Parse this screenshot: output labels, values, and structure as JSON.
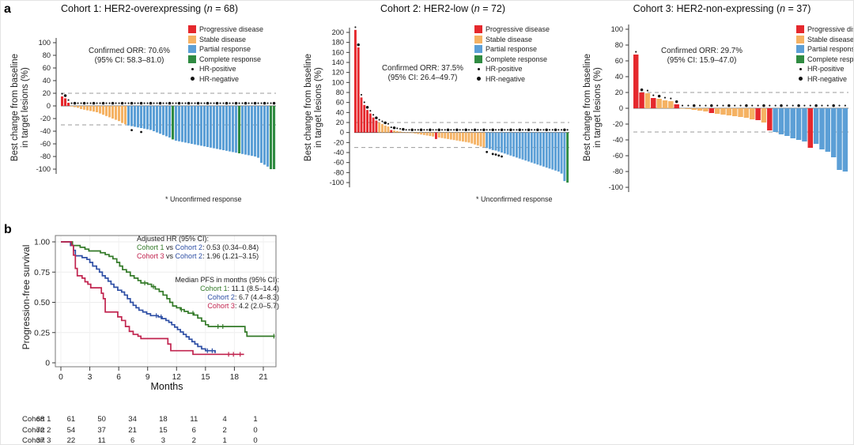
{
  "panels": {
    "a": "a",
    "b": "b"
  },
  "colors": {
    "progressive_disease": "#e5282d",
    "stable_disease": "#f5b263",
    "partial_response": "#5c9fd6",
    "complete_response": "#2f8b41",
    "km_cohort1": "#337a28",
    "km_cohort2": "#2e4fa5",
    "km_cohort3": "#c1244f",
    "axis": "#3a3a3a",
    "dash": "#9b9b9b",
    "marker": "#111111"
  },
  "legend": {
    "items": [
      {
        "label": "Progressive disease",
        "color_key": "progressive_disease"
      },
      {
        "label": "Stable disease",
        "color_key": "stable_disease"
      },
      {
        "label": "Partial response",
        "color_key": "partial_response"
      },
      {
        "label": "Complete response",
        "color_key": "complete_response"
      }
    ],
    "hr_items": [
      {
        "label": "HR-positive",
        "size": "small"
      },
      {
        "label": "HR-negative",
        "size": "large"
      }
    ]
  },
  "chart_data": [
    {
      "type": "bar",
      "subtype": "waterfall",
      "title_pre": "Cohort 1: HER2-overexpressing (",
      "title_n": "n",
      "title_post": " = 68)",
      "n": 68,
      "ylabel_line1": "Best change from baseline",
      "ylabel_line2": "in target lesions (%)",
      "ylim": [
        -100,
        100
      ],
      "ytick_step": 20,
      "ref_lines": [
        20,
        -30
      ],
      "orr_line1": "Confirmed ORR: 70.6%",
      "orr_line2": "(95% CI: 58.3–81.0)",
      "footnote": "* Unconfirmed response",
      "values": [
        15,
        12,
        5,
        -1,
        -2,
        -3,
        -5,
        -6,
        -7,
        -8,
        -9,
        -10,
        -12,
        -14,
        -16,
        -18,
        -20,
        -22,
        -24,
        -27,
        -29,
        -31,
        -32,
        -33,
        -34,
        -35,
        -36,
        -37,
        -38,
        -40,
        -42,
        -44,
        -46,
        -48,
        -50,
        -53,
        -55,
        -56,
        -57,
        -58,
        -59,
        -60,
        -61,
        -62,
        -63,
        -64,
        -65,
        -66,
        -67,
        -68,
        -69,
        -70,
        -71,
        -72,
        -73,
        -74,
        -75,
        -76,
        -77,
        -78,
        -79,
        -80,
        -82,
        -90,
        -93,
        -96,
        -100,
        -100
      ],
      "cats": [
        "PD",
        "PD",
        "PD",
        "SD",
        "SD",
        "SD",
        "SD",
        "SD",
        "SD",
        "SD",
        "SD",
        "SD",
        "SD",
        "SD",
        "SD",
        "SD",
        "SD",
        "SD",
        "SD",
        "SD",
        "SD",
        "PR",
        "PR",
        "PR",
        "PR",
        "PR",
        "PR",
        "PR",
        "PR",
        "PR",
        "PR",
        "PR",
        "PR",
        "PR",
        "PR",
        "CR",
        "PR",
        "PR",
        "PR",
        "PR",
        "PR",
        "PR",
        "PR",
        "PR",
        "PR",
        "PR",
        "PR",
        "PR",
        "PR",
        "PR",
        "PR",
        "PR",
        "PR",
        "PR",
        "PR",
        "PR",
        "CR",
        "PR",
        "PR",
        "PR",
        "PR",
        "PR",
        "PR",
        "PR",
        "PR",
        "PR",
        "CR",
        "CR"
      ],
      "unconfirmed_bar_indexes": [
        22,
        25
      ]
    },
    {
      "type": "bar",
      "subtype": "waterfall",
      "title_pre": "Cohort 2: HER2-low (",
      "title_n": "n",
      "title_post": " = 72)",
      "n": 72,
      "ylabel_line1": "Best change from baseline",
      "ylabel_line2": "in target lesions (%)",
      "ylim": [
        -100,
        200
      ],
      "ytick_step": 20,
      "ref_lines": [
        20,
        -30
      ],
      "orr_line1": "Confirmed ORR: 37.5%",
      "orr_line2": "(95% CI: 26.4–49.7)",
      "footnote": "* Unconfirmed response",
      "values": [
        205,
        170,
        70,
        55,
        45,
        38,
        30,
        24,
        20,
        17,
        14,
        12,
        5,
        4,
        3,
        2,
        1,
        0,
        0,
        -1,
        -2,
        -3,
        -4,
        -5,
        -6,
        -7,
        -8,
        -13,
        -10,
        -11,
        -12,
        -13,
        -14,
        -15,
        -16,
        -17,
        -18,
        -19,
        -20,
        -22,
        -24,
        -26,
        -28,
        -29,
        -31,
        -33,
        -35,
        -36,
        -38,
        -40,
        -42,
        -44,
        -46,
        -48,
        -50,
        -52,
        -54,
        -56,
        -58,
        -60,
        -62,
        -64,
        -66,
        -68,
        -70,
        -72,
        -74,
        -76,
        -78,
        -82,
        -97,
        -100
      ],
      "cats": [
        "PD",
        "PD",
        "PD",
        "PD",
        "PD",
        "PD",
        "PD",
        "PD",
        "SD",
        "SD",
        "SD",
        "SD",
        "PD",
        "SD",
        "SD",
        "SD",
        "SD",
        "SD",
        "SD",
        "SD",
        "SD",
        "SD",
        "SD",
        "SD",
        "SD",
        "SD",
        "SD",
        "PD",
        "SD",
        "SD",
        "SD",
        "SD",
        "SD",
        "SD",
        "SD",
        "SD",
        "SD",
        "SD",
        "SD",
        "SD",
        "SD",
        "SD",
        "SD",
        "SD",
        "PR",
        "PR",
        "PR",
        "PR",
        "PR",
        "PR",
        "PR",
        "PR",
        "PR",
        "PR",
        "PR",
        "PR",
        "PR",
        "PR",
        "PR",
        "PR",
        "PR",
        "PR",
        "PR",
        "PR",
        "PR",
        "PR",
        "PR",
        "PR",
        "PR",
        "PR",
        "PR",
        "CR"
      ],
      "unconfirmed_bar_indexes": [
        44,
        46,
        47,
        48,
        49
      ]
    },
    {
      "type": "bar",
      "subtype": "waterfall",
      "title_pre": "Cohort 3: HER2-non-expressing (",
      "title_n": "n",
      "title_post": " = 37)",
      "n": 37,
      "ylabel_line1": "Best change from baseline",
      "ylabel_line2": "in target lesions (%)",
      "ylim": [
        -100,
        100
      ],
      "ytick_step": 20,
      "ref_lines": [
        20,
        -30
      ],
      "orr_line1": "Confirmed ORR: 29.7%",
      "orr_line2": "(95% CI: 15.9–47.0)",
      "values": [
        68,
        20,
        19,
        13,
        12,
        10,
        9,
        5,
        0,
        -1,
        -2,
        -3,
        -4,
        -6,
        -7,
        -8,
        -9,
        -10,
        -11,
        -12,
        -14,
        -15,
        -18,
        -28,
        -30,
        -33,
        -35,
        -38,
        -40,
        -42,
        -50,
        -45,
        -52,
        -55,
        -62,
        -78,
        -80
      ],
      "cats": [
        "PD",
        "PD",
        "SD",
        "PD",
        "SD",
        "SD",
        "SD",
        "PD",
        "SD",
        "SD",
        "SD",
        "SD",
        "SD",
        "PD",
        "SD",
        "SD",
        "SD",
        "SD",
        "SD",
        "SD",
        "SD",
        "PD",
        "SD",
        "PD",
        "PR",
        "PR",
        "PR",
        "PR",
        "PR",
        "PR",
        "PD",
        "PR",
        "PR",
        "PR",
        "PR",
        "PR",
        "PR"
      ],
      "unconfirmed_bar_indexes": []
    },
    {
      "type": "line",
      "subtype": "kaplan-meier",
      "ylabel": "Progression-free survival",
      "xlabel": "Months",
      "yticks": [
        {
          "t": 1,
          "label": "1.00"
        },
        {
          "t": 0.75,
          "label": "0.75"
        },
        {
          "t": 0.5,
          "label": "0.50"
        },
        {
          "t": 0.25,
          "label": "0.25"
        },
        {
          "t": 0,
          "label": "0"
        }
      ],
      "xticks": [
        0,
        3,
        6,
        9,
        12,
        15,
        18,
        21
      ],
      "xlim": [
        0,
        22.3
      ],
      "annotations": {
        "hr_title": "Adjusted HR (95% CI):",
        "hr1": {
          "a": "Cohort 1",
          "vs": " vs ",
          "b": "Cohort 2",
          "rest": ": 0.53 (0.34–0.84)"
        },
        "hr2": {
          "a": "Cohort 3",
          "vs": " vs ",
          "b": "Cohort 2",
          "rest": ": 1.96 (1.21–3.15)"
        },
        "pfs_title": "Median PFS in months (95% CI):",
        "pfs1": {
          "name": "Cohort 1",
          "rest": ": 11.1 (8.5–14.4)"
        },
        "pfs2": {
          "name": "Cohort 2",
          "rest": ": 6.7 (4.4–8.3)"
        },
        "pfs3": {
          "name": "Cohort 3",
          "rest": ": 4.2 (2.0–5.7)"
        }
      },
      "series": [
        {
          "name": "Cohort 1",
          "color_key": "km_cohort1",
          "steps": [
            [
              0,
              1
            ],
            [
              1.0,
              1
            ],
            [
              1.2,
              0.97
            ],
            [
              2.0,
              0.955
            ],
            [
              2.5,
              0.94
            ],
            [
              2.9,
              0.925
            ],
            [
              4.1,
              0.91
            ],
            [
              4.6,
              0.895
            ],
            [
              5.0,
              0.88
            ],
            [
              5.4,
              0.86
            ],
            [
              5.8,
              0.83
            ],
            [
              6.1,
              0.8
            ],
            [
              6.4,
              0.77
            ],
            [
              6.8,
              0.75
            ],
            [
              7.2,
              0.72
            ],
            [
              7.6,
              0.7
            ],
            [
              8.0,
              0.68
            ],
            [
              8.3,
              0.66
            ],
            [
              9.0,
              0.65
            ],
            [
              9.4,
              0.63
            ],
            [
              9.8,
              0.61
            ],
            [
              10.2,
              0.59
            ],
            [
              10.6,
              0.56
            ],
            [
              11.0,
              0.53
            ],
            [
              11.3,
              0.5
            ],
            [
              11.6,
              0.47
            ],
            [
              12.0,
              0.455
            ],
            [
              12.4,
              0.44
            ],
            [
              12.8,
              0.425
            ],
            [
              13.2,
              0.41
            ],
            [
              13.8,
              0.395
            ],
            [
              14.2,
              0.37
            ],
            [
              14.6,
              0.345
            ],
            [
              15.0,
              0.315
            ],
            [
              15.3,
              0.3
            ],
            [
              18.8,
              0.3
            ],
            [
              19.1,
              0.255
            ],
            [
              19.3,
              0.22
            ],
            [
              22.2,
              0.22
            ]
          ],
          "censor_x": [
            8.7,
            9.6,
            12.5,
            13.7,
            16.3,
            16.8,
            22.1
          ]
        },
        {
          "name": "Cohort 2",
          "color_key": "km_cohort2",
          "steps": [
            [
              0,
              1
            ],
            [
              1.0,
              0.97
            ],
            [
              1.3,
              0.93
            ],
            [
              1.5,
              0.885
            ],
            [
              2.2,
              0.87
            ],
            [
              2.7,
              0.855
            ],
            [
              3.0,
              0.83
            ],
            [
              3.3,
              0.8
            ],
            [
              3.7,
              0.775
            ],
            [
              4.0,
              0.75
            ],
            [
              4.3,
              0.72
            ],
            [
              4.6,
              0.7
            ],
            [
              4.9,
              0.675
            ],
            [
              5.2,
              0.65
            ],
            [
              5.5,
              0.625
            ],
            [
              5.9,
              0.6
            ],
            [
              6.3,
              0.585
            ],
            [
              6.6,
              0.56
            ],
            [
              6.9,
              0.53
            ],
            [
              7.2,
              0.5
            ],
            [
              7.5,
              0.475
            ],
            [
              7.8,
              0.455
            ],
            [
              8.1,
              0.435
            ],
            [
              8.5,
              0.42
            ],
            [
              8.9,
              0.405
            ],
            [
              9.3,
              0.39
            ],
            [
              10.1,
              0.38
            ],
            [
              10.5,
              0.365
            ],
            [
              10.9,
              0.35
            ],
            [
              11.2,
              0.335
            ],
            [
              11.5,
              0.315
            ],
            [
              11.8,
              0.295
            ],
            [
              12.1,
              0.275
            ],
            [
              12.4,
              0.255
            ],
            [
              12.7,
              0.235
            ],
            [
              13.0,
              0.215
            ],
            [
              13.3,
              0.195
            ],
            [
              13.6,
              0.175
            ],
            [
              13.9,
              0.155
            ],
            [
              14.2,
              0.135
            ],
            [
              14.6,
              0.115
            ],
            [
              15.0,
              0.1
            ],
            [
              15.9,
              0.1
            ],
            [
              16.0,
              0.08
            ]
          ],
          "censor_x": [
            9.9,
            10.4,
            15.2,
            15.7
          ]
        },
        {
          "name": "Cohort 3",
          "color_key": "km_cohort3",
          "steps": [
            [
              0,
              1
            ],
            [
              1.1,
              0.97
            ],
            [
              1.3,
              0.89
            ],
            [
              1.5,
              0.78
            ],
            [
              1.7,
              0.72
            ],
            [
              2.2,
              0.7
            ],
            [
              2.5,
              0.67
            ],
            [
              2.8,
              0.65
            ],
            [
              3.1,
              0.62
            ],
            [
              4.0,
              0.62
            ],
            [
              4.2,
              0.575
            ],
            [
              4.4,
              0.53
            ],
            [
              4.6,
              0.42
            ],
            [
              5.7,
              0.42
            ],
            [
              5.9,
              0.38
            ],
            [
              6.3,
              0.35
            ],
            [
              6.7,
              0.3
            ],
            [
              7.1,
              0.26
            ],
            [
              7.5,
              0.235
            ],
            [
              8.0,
              0.22
            ],
            [
              8.3,
              0.2
            ],
            [
              10.9,
              0.2
            ],
            [
              11.1,
              0.155
            ],
            [
              11.4,
              0.1
            ],
            [
              13.4,
              0.1
            ],
            [
              13.7,
              0.07
            ],
            [
              19.0,
              0.07
            ]
          ],
          "censor_x": [
            17.4,
            17.9,
            18.6
          ]
        }
      ],
      "risk_table": {
        "rows": [
          {
            "label": "Cohort 1",
            "counts": [
              68,
              61,
              50,
              34,
              18,
              11,
              4,
              1
            ]
          },
          {
            "label": "Cohort 2",
            "counts": [
              72,
              54,
              37,
              21,
              15,
              6,
              2,
              0
            ]
          },
          {
            "label": "Cohort 3",
            "counts": [
              37,
              22,
              11,
              6,
              3,
              2,
              1,
              0
            ]
          }
        ]
      }
    }
  ]
}
